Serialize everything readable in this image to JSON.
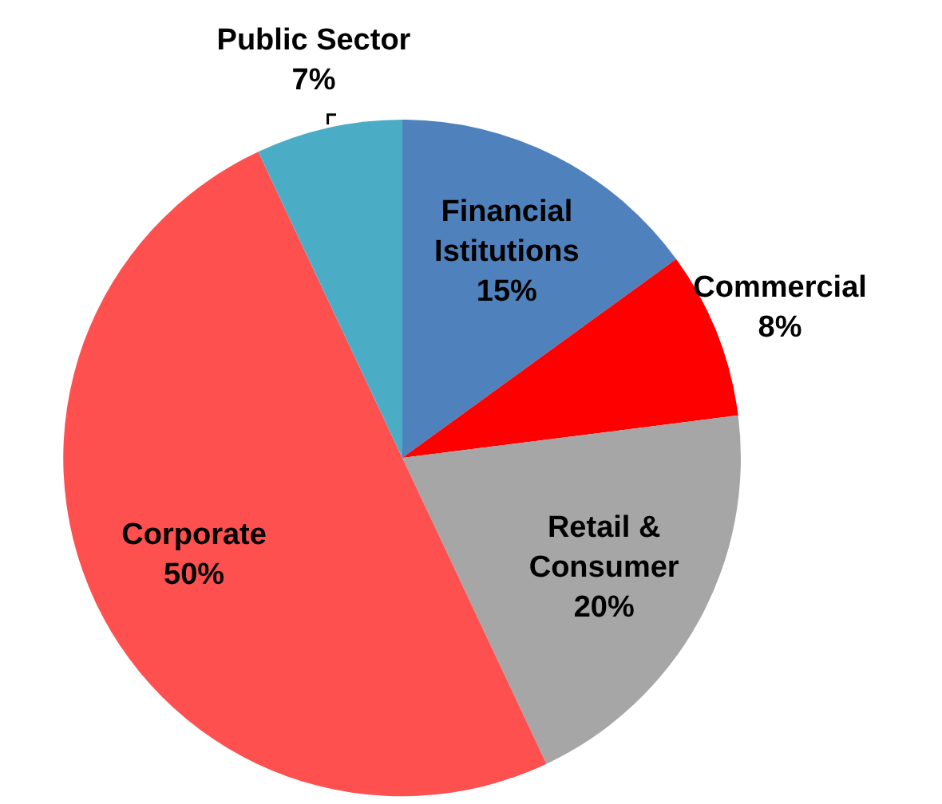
{
  "chart_data": {
    "type": "pie",
    "categories": [
      "Financial Istitutions",
      "Commercial",
      "Retail & Consumer",
      "Corporate",
      "Public Sector"
    ],
    "values": [
      15,
      8,
      20,
      50,
      7
    ],
    "value_labels": [
      "15%",
      "8%",
      "20%",
      "50%",
      "7%"
    ],
    "colors": [
      "#4f81bd",
      "#ff0000",
      "#a6a6a6",
      "#ff5050",
      "#4bacc6"
    ]
  }
}
